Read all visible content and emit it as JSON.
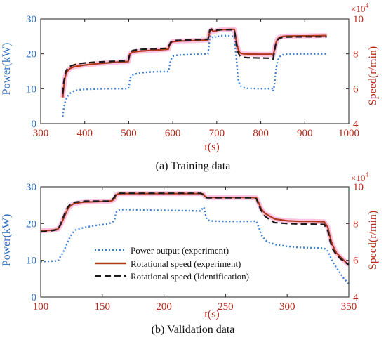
{
  "figure": {
    "caption_a": "(a) Training data",
    "caption_b": "(b) Validation data"
  },
  "colors": {
    "power": "#3f7fd0",
    "speed_exp": "#b03a1e",
    "speed_id": "#1a1a1a",
    "glow": "#ff8fc8",
    "left_axis": "#2f6fbf",
    "right_axis": "#b52a1c"
  },
  "chart_data": [
    {
      "type": "line",
      "title": "(a) Training data",
      "xlabel": "t(s)",
      "ylabel_left": "Power(kW)",
      "ylabel_right": "Speed(r/min)",
      "right_multiplier": "×10",
      "right_multiplier_exp": "4",
      "xlim": [
        300,
        1000
      ],
      "xticks": [
        300,
        400,
        500,
        600,
        700,
        800,
        900,
        1000
      ],
      "ylim_left": [
        0,
        30
      ],
      "yticks_left": [
        0,
        10,
        20,
        30
      ],
      "ylim_right": [
        4,
        10
      ],
      "yticks_right": [
        4,
        6,
        8,
        10
      ],
      "series": [
        {
          "axis": "left",
          "x": [
            350,
            352,
            355,
            358,
            362,
            366,
            370,
            375,
            380,
            390,
            400,
            420,
            450,
            480,
            499,
            501,
            503,
            506,
            510,
            515,
            520,
            530,
            550,
            570,
            590,
            592,
            595,
            598,
            602,
            610,
            620,
            640,
            660,
            680,
            682,
            684,
            688,
            692,
            696,
            700,
            705,
            710,
            720,
            730,
            740,
            742,
            745,
            748,
            752,
            756,
            760,
            770,
            800,
            826,
            828,
            831,
            834,
            838,
            843,
            850,
            860,
            900,
            950
          ],
          "y": [
            2,
            4,
            6,
            7,
            8,
            8.6,
            9,
            9.3,
            9.5,
            9.7,
            9.8,
            9.9,
            10,
            10,
            10,
            11,
            13,
            13.6,
            14,
            14.2,
            14.4,
            14.6,
            14.8,
            14.9,
            14.9,
            16,
            18,
            19,
            19.4,
            19.6,
            19.7,
            19.8,
            19.9,
            20,
            22,
            24.8,
            25.3,
            24.5,
            24.8,
            25.1,
            25,
            25.2,
            25.2,
            25.1,
            25,
            22,
            18,
            13,
            11.2,
            10.6,
            10.3,
            10.1,
            10,
            10,
            9.3,
            11,
            15,
            18,
            19.2,
            19.7,
            19.9,
            20,
            20
          ]
        },
        {
          "axis": "right",
          "x": [
            350,
            352,
            355,
            358,
            362,
            366,
            370,
            375,
            380,
            390,
            400,
            420,
            450,
            480,
            499,
            501,
            503,
            506,
            510,
            515,
            520,
            530,
            550,
            570,
            590,
            592,
            595,
            598,
            602,
            610,
            620,
            640,
            660,
            680,
            682,
            684,
            688,
            692,
            696,
            700,
            705,
            710,
            720,
            730,
            740,
            742,
            745,
            748,
            752,
            756,
            760,
            770,
            800,
            826,
            828,
            831,
            834,
            838,
            843,
            850,
            860,
            900,
            950
          ],
          "y": [
            5.5,
            6.0,
            6.6,
            6.9,
            7.05,
            7.15,
            7.2,
            7.25,
            7.28,
            7.32,
            7.36,
            7.42,
            7.48,
            7.54,
            7.56,
            7.8,
            8.0,
            8.05,
            8.1,
            8.12,
            8.14,
            8.16,
            8.2,
            8.23,
            8.27,
            8.45,
            8.6,
            8.68,
            8.7,
            8.72,
            8.74,
            8.75,
            8.77,
            8.8,
            9.0,
            9.28,
            9.38,
            9.3,
            9.3,
            9.33,
            9.36,
            9.38,
            9.39,
            9.4,
            9.4,
            9.1,
            8.65,
            8.3,
            8.08,
            8.02,
            8.0,
            7.99,
            7.98,
            7.98,
            7.9,
            8.2,
            8.6,
            8.85,
            8.95,
            9.0,
            9.02,
            9.03,
            9.05
          ]
        },
        {
          "axis": "right",
          "x": [
            350,
            352,
            355,
            358,
            362,
            366,
            370,
            375,
            380,
            390,
            400,
            420,
            450,
            480,
            499,
            501,
            503,
            506,
            510,
            515,
            520,
            530,
            550,
            570,
            590,
            592,
            595,
            598,
            602,
            610,
            620,
            640,
            660,
            680,
            682,
            684,
            688,
            692,
            696,
            700,
            705,
            710,
            720,
            730,
            740,
            742,
            745,
            748,
            752,
            756,
            760,
            770,
            800,
            826,
            828,
            831,
            834,
            838,
            843,
            850,
            860,
            900,
            950
          ],
          "y": [
            5.7,
            6.3,
            6.8,
            7.05,
            7.2,
            7.28,
            7.32,
            7.36,
            7.4,
            7.45,
            7.48,
            7.52,
            7.56,
            7.58,
            7.6,
            7.85,
            8.08,
            8.15,
            8.2,
            8.22,
            8.24,
            8.26,
            8.28,
            8.3,
            8.32,
            8.5,
            8.65,
            8.72,
            8.75,
            8.77,
            8.78,
            8.8,
            8.82,
            8.84,
            9.05,
            9.35,
            9.42,
            9.34,
            9.33,
            9.35,
            9.37,
            9.38,
            9.38,
            9.38,
            9.38,
            9.0,
            8.5,
            8.1,
            7.9,
            7.82,
            7.8,
            7.78,
            7.76,
            7.75,
            7.7,
            8.1,
            8.55,
            8.8,
            8.9,
            8.95,
            8.97,
            8.98,
            8.98
          ]
        }
      ],
      "legend": [
        "Power output (experiment)",
        "Rotational speed (experiment)",
        "Rotational speed (Identification)"
      ]
    },
    {
      "type": "line",
      "title": "(b) Validation data",
      "xlabel": "t(s)",
      "ylabel_left": "Power(kW)",
      "ylabel_right": "Speed(r/min)",
      "right_multiplier": "×10",
      "right_multiplier_exp": "4",
      "xlim": [
        100,
        350
      ],
      "xticks": [
        100,
        150,
        200,
        250,
        300,
        350
      ],
      "ylim_left": [
        0,
        30
      ],
      "yticks_left": [
        0,
        10,
        20,
        30
      ],
      "ylim_right": [
        4,
        10
      ],
      "yticks_right": [
        4,
        6,
        8,
        10
      ],
      "legend_position": "bottom-left",
      "series": [
        {
          "name": "Power output (experiment)",
          "axis": "left",
          "x": [
            100,
            105,
            110,
            114,
            116,
            118,
            120,
            122,
            124,
            126,
            128,
            130,
            133,
            136,
            140,
            145,
            150,
            155,
            158,
            160,
            161,
            163,
            166,
            170,
            180,
            200,
            220,
            230,
            232,
            233,
            234,
            235,
            237,
            240,
            250,
            260,
            270,
            275,
            277,
            279,
            282,
            286,
            290,
            300,
            310,
            320,
            330,
            333,
            335,
            337,
            340,
            343,
            346,
            349,
            350
          ],
          "y": [
            9.7,
            9.7,
            9.8,
            9.8,
            11,
            12,
            13.5,
            15,
            16.5,
            17.5,
            18.2,
            18.5,
            18.7,
            19,
            19.2,
            19.5,
            19.7,
            20,
            20.3,
            21,
            23,
            23.6,
            23.8,
            23.8,
            23.7,
            23.6,
            23.5,
            23.4,
            24.5,
            24,
            22,
            21,
            20.8,
            20.7,
            20.6,
            20.6,
            20.6,
            20.7,
            19,
            17,
            15.5,
            14.8,
            14.3,
            13.8,
            13.5,
            13.4,
            13.3,
            12.5,
            11,
            9.5,
            8,
            6.5,
            5,
            4,
            3.5
          ]
        },
        {
          "name": "Rotational speed (experiment)",
          "axis": "right",
          "x": [
            100,
            105,
            110,
            114,
            116,
            118,
            120,
            122,
            124,
            126,
            128,
            130,
            133,
            136,
            140,
            145,
            150,
            155,
            158,
            160,
            161,
            163,
            166,
            170,
            180,
            200,
            220,
            230,
            232,
            233,
            234,
            235,
            237,
            240,
            250,
            260,
            270,
            275,
            277,
            279,
            282,
            286,
            290,
            300,
            310,
            320,
            330,
            333,
            335,
            337,
            340,
            343,
            346,
            349,
            350
          ],
          "y": [
            7.6,
            7.62,
            7.65,
            7.7,
            7.9,
            8.2,
            8.5,
            8.8,
            8.95,
            9.05,
            9.1,
            9.12,
            9.15,
            9.17,
            9.18,
            9.19,
            9.2,
            9.2,
            9.25,
            9.35,
            9.55,
            9.62,
            9.63,
            9.63,
            9.63,
            9.63,
            9.63,
            9.63,
            9.6,
            9.5,
            9.45,
            9.42,
            9.42,
            9.42,
            9.42,
            9.42,
            9.42,
            9.4,
            9.1,
            8.8,
            8.55,
            8.4,
            8.25,
            8.15,
            8.12,
            8.12,
            8.1,
            7.8,
            7.2,
            6.8,
            6.4,
            6.2,
            6.0,
            5.8,
            5.8
          ]
        },
        {
          "name": "Rotational speed (Identification)",
          "axis": "right",
          "x": [
            100,
            105,
            110,
            114,
            116,
            118,
            120,
            122,
            124,
            126,
            128,
            130,
            133,
            136,
            140,
            145,
            150,
            155,
            158,
            160,
            161,
            163,
            166,
            170,
            180,
            200,
            220,
            230,
            232,
            233,
            234,
            235,
            237,
            240,
            250,
            260,
            270,
            275,
            277,
            279,
            282,
            286,
            290,
            300,
            310,
            320,
            330,
            333,
            335,
            337,
            340,
            343,
            346,
            349,
            350
          ],
          "y": [
            7.55,
            7.58,
            7.62,
            7.68,
            7.95,
            8.3,
            8.62,
            8.9,
            9.05,
            9.12,
            9.16,
            9.18,
            9.2,
            9.22,
            9.22,
            9.22,
            9.22,
            9.22,
            9.3,
            9.45,
            9.6,
            9.65,
            9.65,
            9.65,
            9.65,
            9.65,
            9.65,
            9.65,
            9.55,
            9.45,
            9.42,
            9.4,
            9.4,
            9.4,
            9.4,
            9.4,
            9.4,
            9.35,
            9.0,
            8.7,
            8.4,
            8.2,
            8.05,
            8.0,
            7.98,
            7.97,
            7.95,
            7.6,
            7.0,
            6.6,
            6.3,
            6.1,
            5.95,
            5.8,
            5.75
          ]
        }
      ]
    }
  ]
}
